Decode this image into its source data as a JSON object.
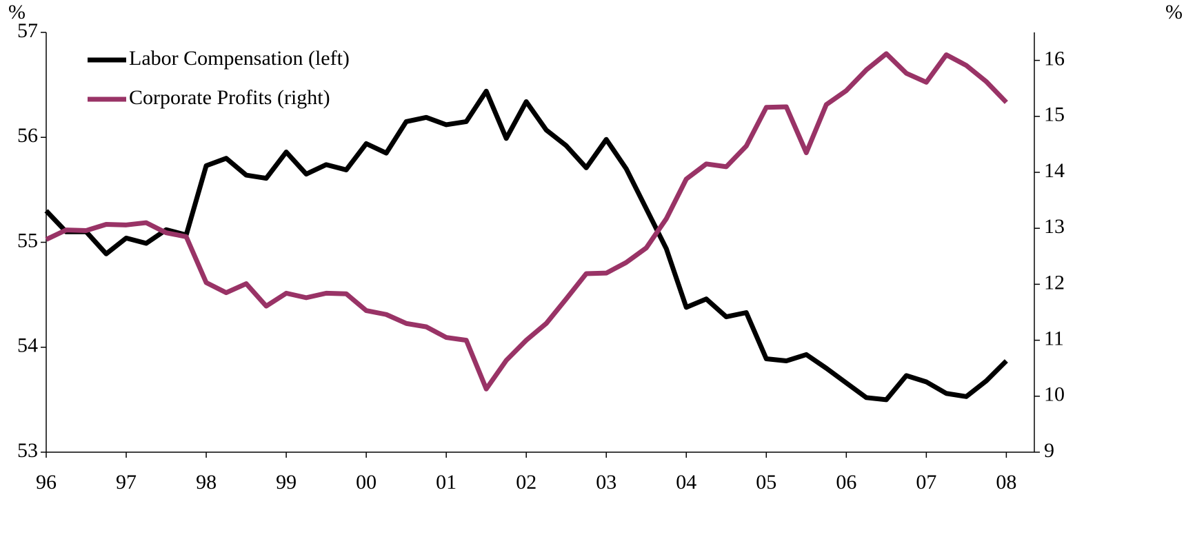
{
  "chart_data": {
    "type": "line",
    "y_label": "%",
    "y2_label": "%",
    "x": [
      1996,
      1996.25,
      1996.5,
      1996.75,
      1997,
      1997.25,
      1997.5,
      1997.75,
      1998,
      1998.25,
      1998.5,
      1998.75,
      1999,
      1999.25,
      1999.5,
      1999.75,
      2000,
      2000.25,
      2000.5,
      2000.75,
      2001,
      2001.25,
      2001.5,
      2001.75,
      2002,
      2002.25,
      2002.5,
      2002.75,
      2003,
      2003.25,
      2003.5,
      2003.75,
      2004,
      2004.25,
      2004.5,
      2004.75,
      2005,
      2005.25,
      2005.5,
      2005.75,
      2006,
      2006.25,
      2006.5,
      2006.75,
      2007,
      2007.25,
      2007.5,
      2007.75,
      2008
    ],
    "series": [
      {
        "name": "Labor Compensation (left)",
        "color": "#000000",
        "axis": "y",
        "values": [
          55.3,
          55.1,
          55.1,
          54.89,
          55.04,
          54.99,
          55.12,
          55.07,
          55.73,
          55.8,
          55.64,
          55.61,
          55.86,
          55.65,
          55.74,
          55.69,
          55.94,
          55.85,
          56.15,
          56.19,
          56.12,
          56.15,
          56.44,
          55.99,
          56.34,
          56.07,
          55.92,
          55.71,
          55.98,
          55.7,
          55.32,
          54.94,
          54.38,
          54.46,
          54.29,
          54.33,
          53.89,
          53.87,
          53.93,
          53.8,
          53.66,
          53.52,
          53.5,
          53.73,
          53.67,
          53.56,
          53.53,
          53.68,
          53.87
        ]
      },
      {
        "name": "Corporate Profits (right)",
        "color": "#993366",
        "axis": "y2",
        "values": [
          12.8,
          12.97,
          12.96,
          13.07,
          13.06,
          13.1,
          12.92,
          12.85,
          12.03,
          11.85,
          12.01,
          11.61,
          11.84,
          11.76,
          11.84,
          11.83,
          11.53,
          11.46,
          11.3,
          11.24,
          11.05,
          11.0,
          10.13,
          10.64,
          11.0,
          11.3,
          11.74,
          12.19,
          12.2,
          12.39,
          12.65,
          13.17,
          13.88,
          14.15,
          14.1,
          14.47,
          15.16,
          15.17,
          14.35,
          15.21,
          15.46,
          15.83,
          16.12,
          15.77,
          15.61,
          16.1,
          15.91,
          15.62,
          15.25
        ]
      }
    ],
    "xlim": [
      1996,
      2008.35
    ],
    "xticks": [
      {
        "value": 1996,
        "label": "96"
      },
      {
        "value": 1997,
        "label": "97"
      },
      {
        "value": 1998,
        "label": "98"
      },
      {
        "value": 1999,
        "label": "99"
      },
      {
        "value": 2000,
        "label": "00"
      },
      {
        "value": 2001,
        "label": "01"
      },
      {
        "value": 2002,
        "label": "02"
      },
      {
        "value": 2003,
        "label": "03"
      },
      {
        "value": 2004,
        "label": "04"
      },
      {
        "value": 2005,
        "label": "05"
      },
      {
        "value": 2006,
        "label": "06"
      },
      {
        "value": 2007,
        "label": "07"
      },
      {
        "value": 2008,
        "label": "08"
      }
    ],
    "ylim": [
      53,
      57
    ],
    "yticks": [
      53,
      54,
      55,
      56,
      57
    ],
    "y2lim": [
      9,
      16.5
    ],
    "y2ticks": [
      9,
      10,
      11,
      12,
      13,
      14,
      15,
      16
    ],
    "legend": "top-left",
    "grid": false
  }
}
